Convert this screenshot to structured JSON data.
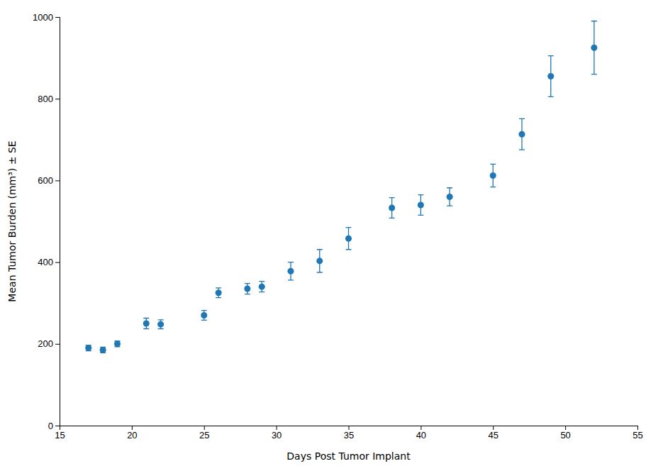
{
  "chart_data": {
    "type": "scatter",
    "x": [
      17,
      18,
      19,
      21,
      22,
      25,
      26,
      28,
      29,
      31,
      33,
      35,
      38,
      40,
      42,
      45,
      47,
      49,
      52
    ],
    "values": [
      190,
      185,
      200,
      250,
      248,
      270,
      325,
      335,
      340,
      378,
      403,
      458,
      533,
      540,
      560,
      612,
      713,
      855,
      925
    ],
    "yerr": [
      7,
      7,
      7,
      13,
      11,
      12,
      12,
      13,
      13,
      22,
      28,
      27,
      25,
      25,
      22,
      28,
      38,
      50,
      65
    ],
    "xlabel": "Days Post Tumor Implant",
    "ylabel": "Mean Tumor Burden (mm³) ± SE",
    "xlim": [
      15,
      55
    ],
    "ylim": [
      0,
      1000
    ],
    "xticks": [
      15,
      20,
      25,
      30,
      35,
      40,
      45,
      50,
      55
    ],
    "yticks": [
      0,
      200,
      400,
      600,
      800,
      1000
    ],
    "marker": "circle",
    "grid": false
  }
}
